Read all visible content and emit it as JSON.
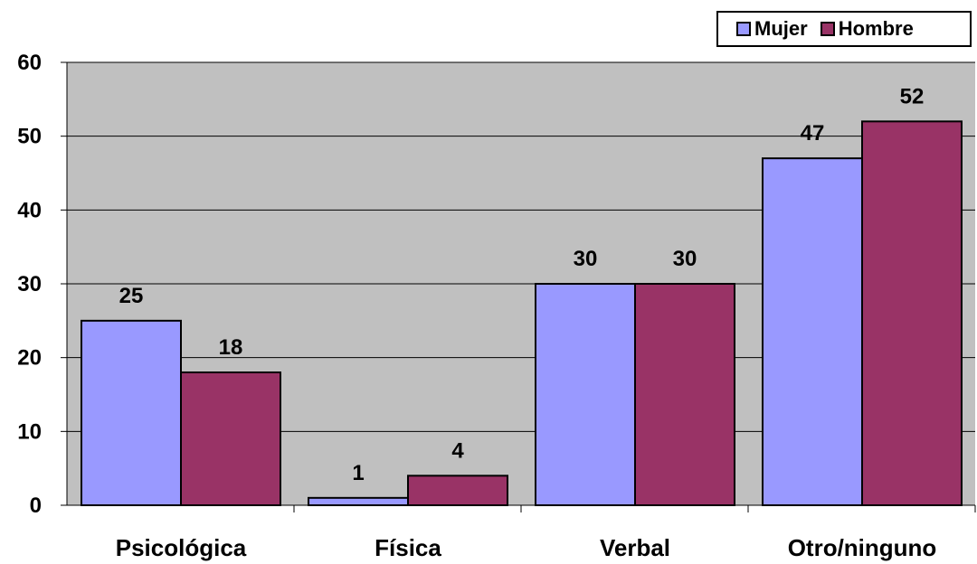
{
  "chart_data": {
    "type": "bar",
    "categories": [
      "Psicológica",
      "Física",
      "Verbal",
      "Otro/ninguno"
    ],
    "series": [
      {
        "name": "Mujer",
        "values": [
          25,
          1,
          30,
          47
        ],
        "color": "#9999ff"
      },
      {
        "name": "Hombre",
        "values": [
          18,
          4,
          30,
          52
        ],
        "color": "#993366"
      }
    ],
    "ylim": [
      0,
      60
    ],
    "yticks": [
      0,
      10,
      20,
      30,
      40,
      50,
      60
    ],
    "grid": true,
    "plot_background": "#c0c0c0",
    "legend_position": "top-right",
    "data_labels": true
  }
}
